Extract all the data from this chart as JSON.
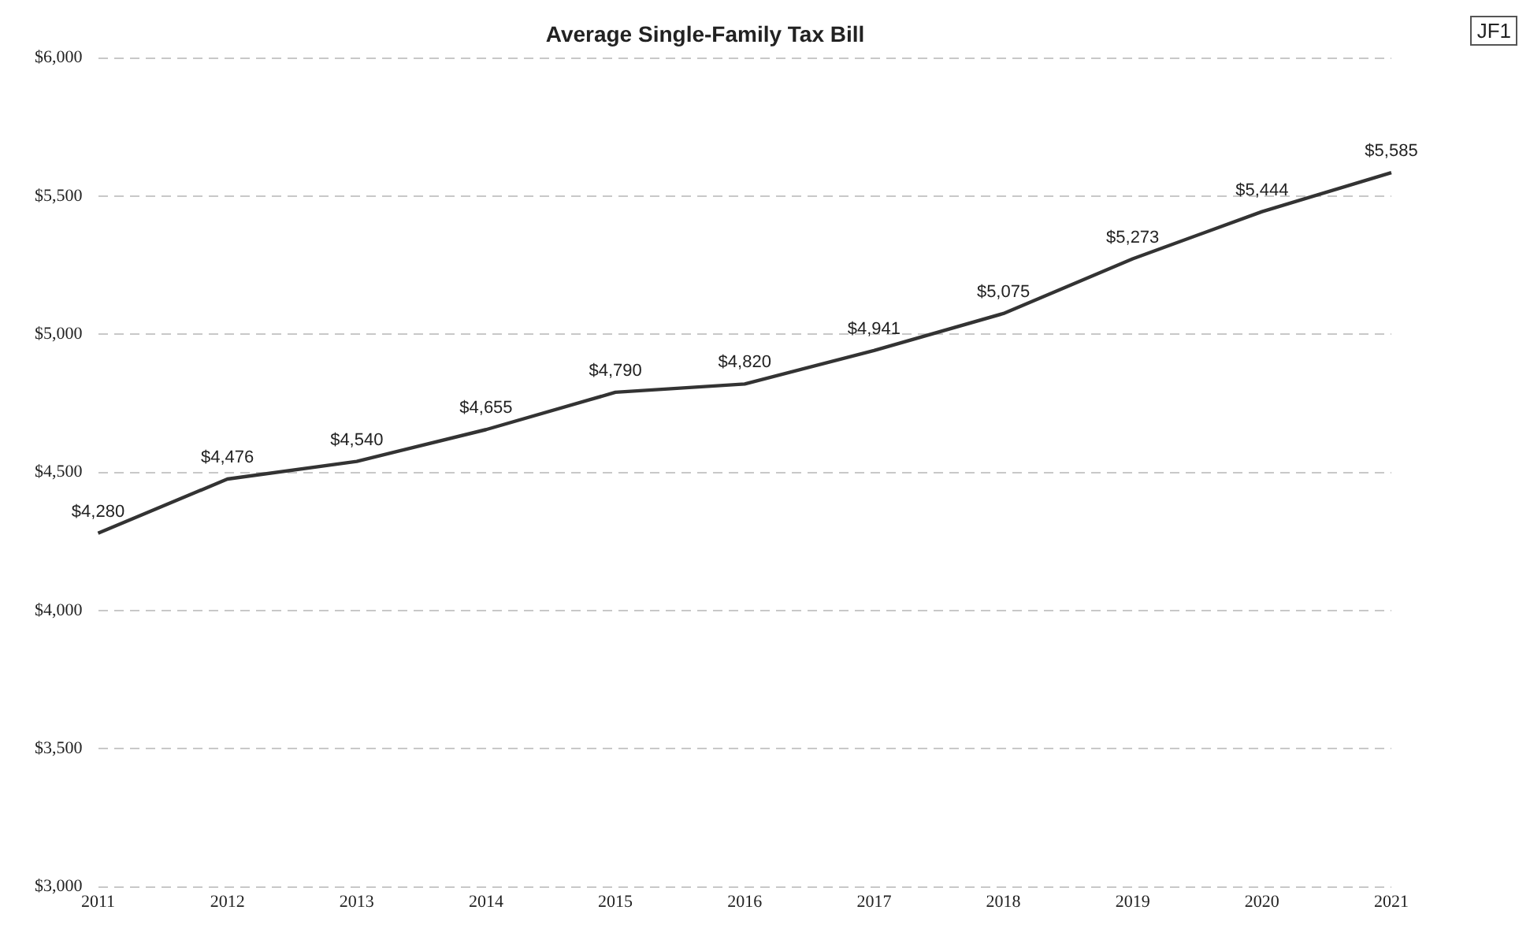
{
  "chart_data": {
    "type": "line",
    "title": "Average Single-Family Tax Bill",
    "categories": [
      "2011",
      "2012",
      "2013",
      "2014",
      "2015",
      "2016",
      "2017",
      "2018",
      "2019",
      "2020",
      "2021"
    ],
    "series": [
      {
        "color": "#333333",
        "values": [
          4280,
          4476,
          4540,
          4655,
          4790,
          4820,
          4941,
          5075,
          5273,
          5444,
          5585
        ],
        "value_labels": [
          "$4,280",
          "$4,476",
          "$4,540",
          "$4,655",
          "$4,790",
          "$4,820",
          "$4,941",
          "$5,075",
          "$5,273",
          "$5,444",
          "$5,585"
        ]
      }
    ],
    "ylim": [
      3000,
      6000
    ],
    "yticks": [
      {
        "value": 3000,
        "label": "$3,000"
      },
      {
        "value": 3500,
        "label": "$3,500"
      },
      {
        "value": 4000,
        "label": "$4,000"
      },
      {
        "value": 4500,
        "label": "$4,500"
      },
      {
        "value": 5000,
        "label": "$5,000"
      },
      {
        "value": 5500,
        "label": "$5,500"
      },
      {
        "value": 6000,
        "label": "$6,000"
      }
    ],
    "grid": "y",
    "legend": false,
    "marker": "none",
    "line_style": "solid",
    "annotations": [
      "JF1"
    ]
  }
}
